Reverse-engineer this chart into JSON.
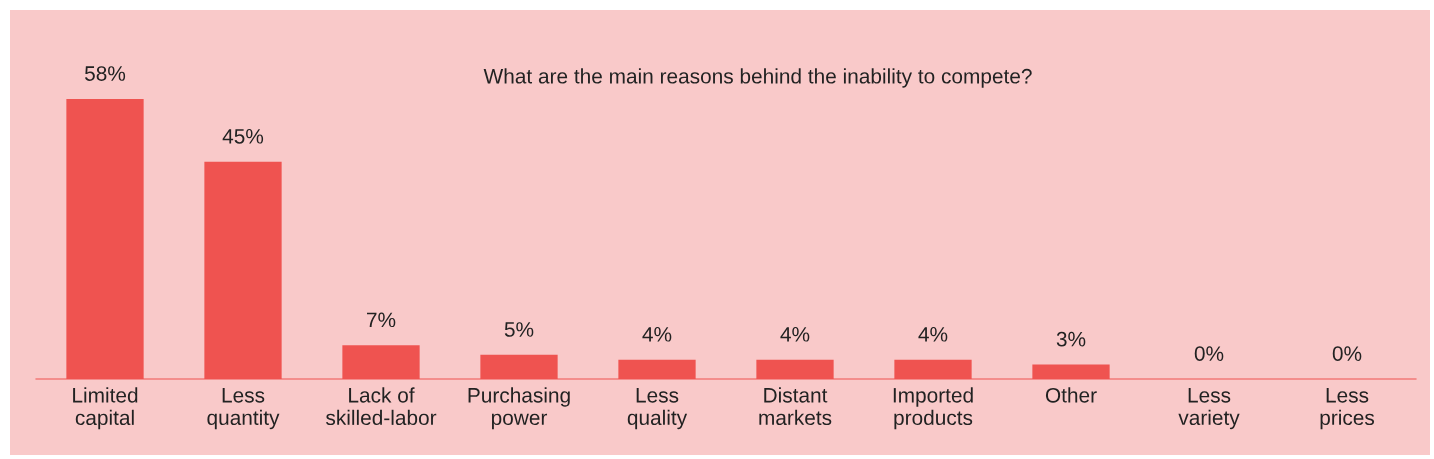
{
  "chart_data": {
    "type": "bar",
    "title": "What are the main reasons behind the inability to compete?",
    "categories": [
      "Limited\ncapital",
      "Less\nquantity",
      "Lack of\nskilled-labor",
      "Purchasing\npower",
      "Less\nquality",
      "Distant\nmarkets",
      "Imported\nproducts",
      "Other",
      "Less\nvariety",
      "Less\nprices"
    ],
    "values": [
      58,
      45,
      7,
      5,
      4,
      4,
      4,
      3,
      0,
      0
    ],
    "value_labels": [
      "58%",
      "45%",
      "7%",
      "5%",
      "4%",
      "4%",
      "4%",
      "3%",
      "0%",
      "0%"
    ],
    "color": "#ef5350",
    "grid": false,
    "legend": false
  }
}
